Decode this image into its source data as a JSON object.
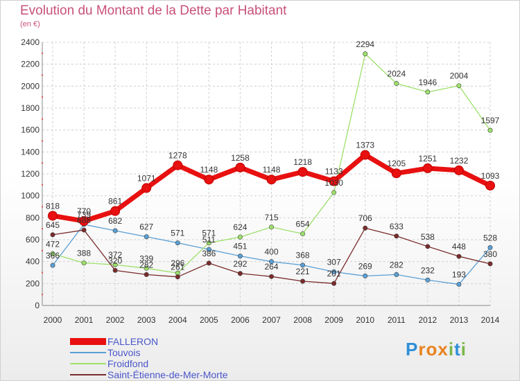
{
  "title": "Evolution du Montant de la Dette par Habitant",
  "unit": "(en €)",
  "brand": {
    "letters": [
      "P",
      "r",
      "o",
      "x",
      "i",
      "t",
      "i"
    ],
    "colors": [
      "#2e8fd8",
      "#e9831f",
      "#e9831f",
      "#e9831f",
      "#7ab648",
      "#2e8fd8",
      "#7ab648"
    ]
  },
  "chart_data": {
    "type": "line",
    "title": "Evolution du Montant de la Dette par Habitant",
    "subtitle": "(en €)",
    "xlabel": "",
    "ylabel": "",
    "x": [
      2000,
      2001,
      2002,
      2003,
      2004,
      2005,
      2006,
      2007,
      2008,
      2009,
      2010,
      2011,
      2012,
      2013,
      2014
    ],
    "ylim": [
      0,
      2400
    ],
    "yticks": [
      0,
      200,
      400,
      600,
      800,
      1000,
      1200,
      1400,
      1600,
      1800,
      2000,
      2200,
      2400
    ],
    "grid": true,
    "legend": "bottom-left",
    "series": [
      {
        "name": "FALLERON",
        "color": "#e81010",
        "emphasis": true,
        "values": [
          818,
          770,
          861,
          1071,
          1278,
          1148,
          1258,
          1148,
          1218,
          1133,
          1373,
          1205,
          1251,
          1232,
          1093
        ]
      },
      {
        "name": "Touvois",
        "color": "#5a9fd4",
        "emphasis": false,
        "values": [
          366,
          739,
          682,
          627,
          571,
          511,
          451,
          400,
          368,
          307,
          269,
          282,
          232,
          193,
          528
        ]
      },
      {
        "name": "Froidfond",
        "color": "#9de06a",
        "emphasis": false,
        "values": [
          472,
          388,
          372,
          339,
          296,
          571,
          624,
          715,
          654,
          1030,
          2294,
          2024,
          1946,
          2004,
          1597
        ]
      },
      {
        "name": "Saint-Étienne-de-Mer-Morte",
        "color": "#7a2a2a",
        "emphasis": false,
        "values": [
          645,
          688,
          320,
          282,
          261,
          386,
          292,
          264,
          221,
          201,
          706,
          633,
          538,
          448,
          380
        ]
      }
    ]
  }
}
